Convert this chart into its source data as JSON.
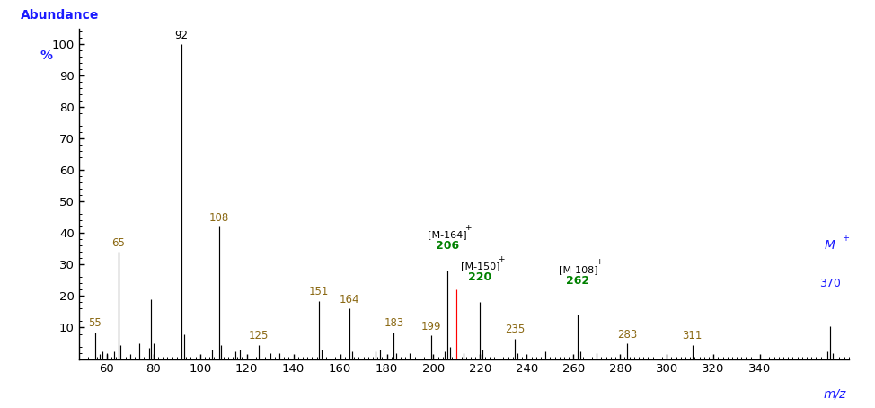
{
  "peaks": [
    {
      "mz": 55,
      "abundance": 8.5,
      "label": "55",
      "label_color": "#8B6914"
    },
    {
      "mz": 57,
      "abundance": 1.5,
      "label": "",
      "label_color": "#8B6914"
    },
    {
      "mz": 58,
      "abundance": 2.5,
      "label": "",
      "label_color": "#8B6914"
    },
    {
      "mz": 60,
      "abundance": 1.8,
      "label": "",
      "label_color": "#8B6914"
    },
    {
      "mz": 63,
      "abundance": 2.5,
      "label": "",
      "label_color": "#8B6914"
    },
    {
      "mz": 65,
      "abundance": 34,
      "label": "65",
      "label_color": "#8B6914"
    },
    {
      "mz": 66,
      "abundance": 4.5,
      "label": "",
      "label_color": "#8B6914"
    },
    {
      "mz": 70,
      "abundance": 1.5,
      "label": "",
      "label_color": "#8B6914"
    },
    {
      "mz": 74,
      "abundance": 5.0,
      "label": "",
      "label_color": "#8B6914"
    },
    {
      "mz": 78,
      "abundance": 3.5,
      "label": "",
      "label_color": "#8B6914"
    },
    {
      "mz": 79,
      "abundance": 19,
      "label": "",
      "label_color": "#8B6914"
    },
    {
      "mz": 80,
      "abundance": 5.0,
      "label": "",
      "label_color": "#8B6914"
    },
    {
      "mz": 92,
      "abundance": 100,
      "label": "92",
      "label_color": "#000000"
    },
    {
      "mz": 93,
      "abundance": 8.0,
      "label": "",
      "label_color": "#000000"
    },
    {
      "mz": 105,
      "abundance": 3.0,
      "label": "",
      "label_color": "#8B6914"
    },
    {
      "mz": 108,
      "abundance": 42,
      "label": "108",
      "label_color": "#8B6914"
    },
    {
      "mz": 109,
      "abundance": 4.5,
      "label": "",
      "label_color": "#8B6914"
    },
    {
      "mz": 115,
      "abundance": 2.5,
      "label": "",
      "label_color": "#8B6914"
    },
    {
      "mz": 117,
      "abundance": 3.0,
      "label": "",
      "label_color": "#8B6914"
    },
    {
      "mz": 125,
      "abundance": 4.5,
      "label": "125",
      "label_color": "#8B6914"
    },
    {
      "mz": 130,
      "abundance": 2.0,
      "label": "",
      "label_color": "#8B6914"
    },
    {
      "mz": 134,
      "abundance": 1.8,
      "label": "",
      "label_color": "#8B6914"
    },
    {
      "mz": 151,
      "abundance": 18.5,
      "label": "151",
      "label_color": "#8B6914"
    },
    {
      "mz": 152,
      "abundance": 3.0,
      "label": "",
      "label_color": "#8B6914"
    },
    {
      "mz": 164,
      "abundance": 16,
      "label": "164",
      "label_color": "#8B6914"
    },
    {
      "mz": 165,
      "abundance": 2.5,
      "label": "",
      "label_color": "#8B6914"
    },
    {
      "mz": 175,
      "abundance": 2.5,
      "label": "",
      "label_color": "#8B6914"
    },
    {
      "mz": 177,
      "abundance": 3.0,
      "label": "",
      "label_color": "#8B6914"
    },
    {
      "mz": 183,
      "abundance": 8.5,
      "label": "183",
      "label_color": "#8B6914"
    },
    {
      "mz": 184,
      "abundance": 2.0,
      "label": "",
      "label_color": "#8B6914"
    },
    {
      "mz": 190,
      "abundance": 2.0,
      "label": "",
      "label_color": "#8B6914"
    },
    {
      "mz": 199,
      "abundance": 7.5,
      "label": "199",
      "label_color": "#8B6914"
    },
    {
      "mz": 205,
      "abundance": 2.5,
      "label": "",
      "label_color": "#8B6914"
    },
    {
      "mz": 206,
      "abundance": 28,
      "label": "206",
      "label_color": "#008000"
    },
    {
      "mz": 207,
      "abundance": 4.0,
      "label": "",
      "label_color": "#8B6914"
    },
    {
      "mz": 213,
      "abundance": 2.0,
      "label": "",
      "label_color": "#8B6914"
    },
    {
      "mz": 220,
      "abundance": 18,
      "label": "220",
      "label_color": "#008000"
    },
    {
      "mz": 221,
      "abundance": 3.0,
      "label": "",
      "label_color": "#8B6914"
    },
    {
      "mz": 235,
      "abundance": 6.5,
      "label": "235",
      "label_color": "#8B6914"
    },
    {
      "mz": 236,
      "abundance": 1.8,
      "label": "",
      "label_color": "#8B6914"
    },
    {
      "mz": 248,
      "abundance": 2.5,
      "label": "",
      "label_color": "#8B6914"
    },
    {
      "mz": 262,
      "abundance": 14,
      "label": "262",
      "label_color": "#008000"
    },
    {
      "mz": 263,
      "abundance": 2.5,
      "label": "",
      "label_color": "#8B6914"
    },
    {
      "mz": 270,
      "abundance": 2.0,
      "label": "",
      "label_color": "#8B6914"
    },
    {
      "mz": 283,
      "abundance": 5.0,
      "label": "283",
      "label_color": "#8B6914"
    },
    {
      "mz": 311,
      "abundance": 4.5,
      "label": "311",
      "label_color": "#8B6914"
    },
    {
      "mz": 369,
      "abundance": 2.5,
      "label": "",
      "label_color": "#1a1aff"
    },
    {
      "mz": 370,
      "abundance": 10.5,
      "label": "370",
      "label_color": "#1a1aff"
    },
    {
      "mz": 371,
      "abundance": 2.0,
      "label": "",
      "label_color": "#1a1aff"
    }
  ],
  "red_bar": {
    "mz": 210,
    "abundance": 22
  },
  "xmin": 48,
  "xmax": 378,
  "ymin": 0,
  "ymax": 105,
  "xlabel": "m/z",
  "ylabel_line1": "Abundance",
  "ylabel_line2": "%",
  "bar_color": "#000000",
  "axis_color": "#000000",
  "spine_color": "#000000",
  "label_color_blue": "#1a1aff",
  "background_color": "#ffffff",
  "xticks": [
    60,
    80,
    100,
    120,
    140,
    160,
    180,
    200,
    220,
    240,
    260,
    280,
    300,
    320,
    340
  ],
  "yticks": [
    10,
    20,
    30,
    40,
    50,
    60,
    70,
    80,
    90,
    100
  ],
  "fragment_annotations": [
    {
      "mz": 206,
      "y_base": 33,
      "bracket_label": "[M-164]",
      "green_label": "206",
      "color_bracket": "#000000",
      "color_green": "#008000"
    },
    {
      "mz": 220,
      "y_base": 23,
      "bracket_label": "[M-150]",
      "green_label": "220",
      "color_bracket": "#000000",
      "color_green": "#008000"
    },
    {
      "mz": 262,
      "y_base": 22,
      "bracket_label": "[M-108]",
      "green_label": "262",
      "color_bracket": "#000000",
      "color_green": "#008000"
    }
  ],
  "mplus": {
    "mz": 370,
    "y_label": 30,
    "y_num": 24,
    "color": "#1a1aff"
  }
}
